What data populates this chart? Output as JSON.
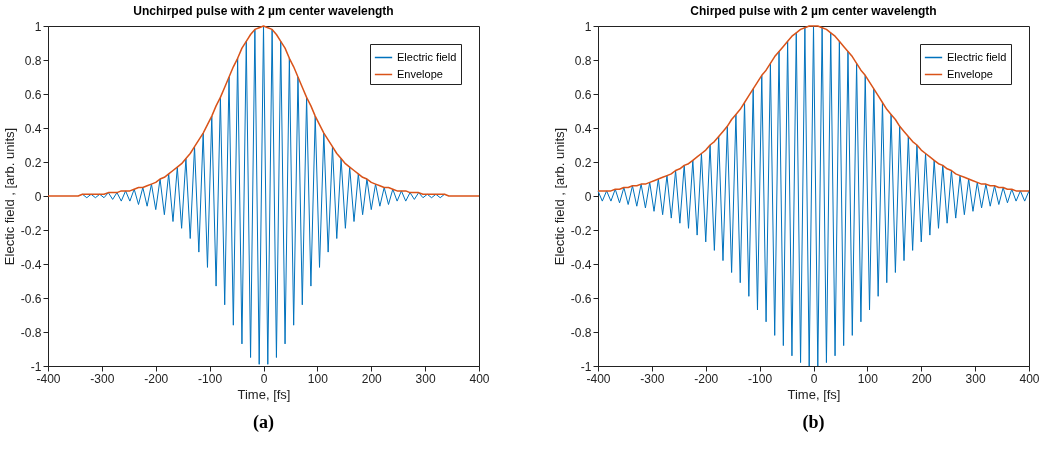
{
  "chart_data": [
    {
      "type": "line",
      "title": "Unchirped pulse with 2 µm center wavelength",
      "xlabel": "Time, [fs]",
      "ylabel": "Electic field , [arb. units]",
      "annotations": [
        "(a)"
      ],
      "x": [
        -400,
        -392,
        -384,
        -376,
        -368,
        -360,
        -352,
        -344,
        -336,
        -328,
        -320,
        -312,
        -304,
        -296,
        -288,
        -280,
        -272,
        -264,
        -256,
        -248,
        -240,
        -232,
        -224,
        -216,
        -208,
        -200,
        -192,
        -184,
        -176,
        -168,
        -160,
        -152,
        -144,
        -136,
        -128,
        -120,
        -112,
        -104,
        -96,
        -88,
        -80,
        -72,
        -64,
        -56,
        -48,
        -40,
        -32,
        -24,
        -16,
        -8,
        0,
        8,
        16,
        24,
        32,
        40,
        48,
        56,
        64,
        72,
        80,
        88,
        96,
        104,
        112,
        120,
        128,
        136,
        144,
        152,
        160,
        168,
        176,
        184,
        192,
        200,
        208,
        216,
        224,
        232,
        240,
        248,
        256,
        264,
        272,
        280,
        288,
        296,
        304,
        312,
        320,
        328,
        336,
        344,
        352,
        360,
        368,
        376,
        384,
        392,
        400
      ],
      "series": [
        {
          "name": "Electric field",
          "color": "#0072bd",
          "values": [
            null,
            null,
            null,
            null,
            null,
            null,
            null,
            null,
            0.01,
            -0.01,
            0.01,
            -0.01,
            0.01,
            -0.01,
            0.02,
            -0.02,
            0.02,
            -0.03,
            0.03,
            -0.03,
            0.04,
            -0.05,
            0.05,
            -0.06,
            0.07,
            -0.08,
            0.1,
            -0.11,
            0.13,
            -0.15,
            0.17,
            -0.19,
            0.22,
            -0.25,
            0.29,
            -0.33,
            0.37,
            -0.42,
            0.47,
            -0.53,
            0.58,
            -0.64,
            0.7,
            -0.76,
            0.81,
            -0.87,
            0.91,
            -0.95,
            0.98,
            -0.99,
            1,
            -0.99,
            0.98,
            -0.95,
            0.91,
            -0.87,
            0.81,
            -0.76,
            0.7,
            -0.64,
            0.58,
            -0.53,
            0.47,
            -0.42,
            0.37,
            -0.33,
            0.29,
            -0.25,
            0.22,
            -0.19,
            0.17,
            -0.15,
            0.13,
            -0.11,
            0.1,
            -0.08,
            0.07,
            -0.06,
            0.05,
            -0.05,
            0.04,
            -0.03,
            0.03,
            -0.03,
            0.02,
            -0.02,
            0.02,
            -0.01,
            0.01,
            -0.01,
            0.01,
            -0.01,
            0.01,
            null,
            null,
            null,
            null,
            null,
            null,
            null,
            null
          ]
        },
        {
          "name": "Envelope",
          "color": "#d95319",
          "values": [
            0,
            0,
            0,
            0,
            0,
            0,
            0,
            0,
            0.01,
            0.01,
            0.01,
            0.01,
            0.01,
            0.01,
            0.02,
            0.02,
            0.02,
            0.03,
            0.03,
            0.03,
            0.04,
            0.05,
            0.05,
            0.06,
            0.07,
            0.08,
            0.1,
            0.11,
            0.13,
            0.15,
            0.17,
            0.19,
            0.22,
            0.25,
            0.29,
            0.33,
            0.37,
            0.42,
            0.47,
            0.53,
            0.58,
            0.64,
            0.7,
            0.76,
            0.81,
            0.87,
            0.91,
            0.95,
            0.98,
            0.99,
            1,
            0.99,
            0.98,
            0.95,
            0.91,
            0.87,
            0.81,
            0.76,
            0.7,
            0.64,
            0.58,
            0.53,
            0.47,
            0.42,
            0.37,
            0.33,
            0.29,
            0.25,
            0.22,
            0.19,
            0.17,
            0.15,
            0.13,
            0.11,
            0.1,
            0.08,
            0.07,
            0.06,
            0.05,
            0.05,
            0.04,
            0.03,
            0.03,
            0.03,
            0.02,
            0.02,
            0.02,
            0.01,
            0.01,
            0.01,
            0.01,
            0.01,
            0.01,
            0,
            0,
            0,
            0,
            0,
            0,
            0,
            0
          ]
        }
      ],
      "xlim": [
        -400,
        400
      ],
      "xticks": [
        -400,
        -300,
        -200,
        -100,
        0,
        100,
        200,
        300,
        400
      ],
      "ylim": [
        -1,
        1
      ],
      "yticks": [
        -1,
        -0.8,
        -0.6,
        -0.4,
        -0.2,
        0,
        0.2,
        0.4,
        0.6,
        0.8,
        1
      ],
      "legend": "top right",
      "line_style": "solid",
      "marker": "none"
    },
    {
      "type": "line",
      "title": "Chirped pulse with 2 µm center wavelength",
      "xlabel": "Time, [fs]",
      "ylabel": "Electic field , [arb. units]",
      "annotations": [
        "(b)"
      ],
      "x": [
        -400,
        -392,
        -384,
        -376,
        -368,
        -360,
        -352,
        -344,
        -336,
        -328,
        -320,
        -312,
        -304,
        -296,
        -288,
        -280,
        -272,
        -264,
        -256,
        -248,
        -240,
        -232,
        -224,
        -216,
        -208,
        -200,
        -192,
        -184,
        -176,
        -168,
        -160,
        -152,
        -144,
        -136,
        -128,
        -120,
        -112,
        -104,
        -96,
        -88,
        -80,
        -72,
        -64,
        -56,
        -48,
        -40,
        -32,
        -24,
        -16,
        -8,
        0,
        8,
        16,
        24,
        32,
        40,
        48,
        56,
        64,
        72,
        80,
        88,
        96,
        104,
        112,
        120,
        128,
        136,
        144,
        152,
        160,
        168,
        176,
        184,
        192,
        200,
        208,
        216,
        224,
        232,
        240,
        248,
        256,
        264,
        272,
        280,
        288,
        296,
        304,
        312,
        320,
        328,
        336,
        344,
        352,
        360,
        368,
        376,
        384,
        392,
        400
      ],
      "series": [
        {
          "name": "Electric field",
          "color": "#0072bd",
          "values": [
            0.03,
            -0.03,
            0.03,
            -0.03,
            0.04,
            -0.04,
            0.05,
            -0.05,
            0.06,
            -0.06,
            0.07,
            -0.07,
            0.08,
            -0.09,
            0.1,
            -0.11,
            0.12,
            -0.13,
            0.15,
            -0.16,
            0.18,
            -0.19,
            0.21,
            -0.23,
            0.25,
            -0.27,
            0.3,
            -0.32,
            0.35,
            -0.38,
            0.41,
            -0.45,
            0.48,
            -0.51,
            0.55,
            -0.59,
            0.63,
            -0.67,
            0.71,
            -0.74,
            0.78,
            -0.82,
            0.85,
            -0.88,
            0.91,
            -0.94,
            0.96,
            -0.98,
            0.99,
            -1,
            1,
            -1,
            0.99,
            -0.98,
            0.96,
            -0.94,
            0.91,
            -0.88,
            0.85,
            -0.82,
            0.78,
            -0.74,
            0.71,
            -0.67,
            0.63,
            -0.59,
            0.55,
            -0.51,
            0.48,
            -0.45,
            0.41,
            -0.38,
            0.35,
            -0.32,
            0.3,
            -0.27,
            0.25,
            -0.23,
            0.21,
            -0.19,
            0.18,
            -0.16,
            0.15,
            -0.13,
            0.12,
            -0.11,
            0.1,
            -0.09,
            0.08,
            -0.07,
            0.07,
            -0.06,
            0.06,
            -0.05,
            0.05,
            -0.04,
            0.04,
            -0.03,
            0.03,
            -0.03,
            0.03
          ]
        },
        {
          "name": "Envelope",
          "color": "#d95319",
          "values": [
            0.03,
            0.03,
            0.03,
            0.03,
            0.04,
            0.04,
            0.05,
            0.05,
            0.06,
            0.06,
            0.07,
            0.07,
            0.08,
            0.09,
            0.1,
            0.11,
            0.12,
            0.13,
            0.15,
            0.16,
            0.18,
            0.19,
            0.21,
            0.23,
            0.25,
            0.27,
            0.3,
            0.32,
            0.35,
            0.38,
            0.41,
            0.45,
            0.48,
            0.51,
            0.55,
            0.59,
            0.63,
            0.67,
            0.71,
            0.74,
            0.78,
            0.82,
            0.85,
            0.88,
            0.91,
            0.94,
            0.96,
            0.98,
            0.99,
            1,
            1,
            1,
            0.99,
            0.98,
            0.96,
            0.94,
            0.91,
            0.88,
            0.85,
            0.82,
            0.78,
            0.74,
            0.71,
            0.67,
            0.63,
            0.59,
            0.55,
            0.51,
            0.48,
            0.45,
            0.41,
            0.38,
            0.35,
            0.32,
            0.3,
            0.27,
            0.25,
            0.23,
            0.21,
            0.19,
            0.18,
            0.16,
            0.15,
            0.13,
            0.12,
            0.11,
            0.1,
            0.09,
            0.08,
            0.07,
            0.07,
            0.06,
            0.06,
            0.05,
            0.05,
            0.04,
            0.04,
            0.03,
            0.03,
            0.03,
            0.03
          ]
        }
      ],
      "xlim": [
        -400,
        400
      ],
      "xticks": [
        -400,
        -300,
        -200,
        -100,
        0,
        100,
        200,
        300,
        400
      ],
      "ylim": [
        -1,
        1
      ],
      "yticks": [
        -1,
        -0.8,
        -0.6,
        -0.4,
        -0.2,
        0,
        0.2,
        0.4,
        0.6,
        0.8,
        1
      ],
      "legend": "top right",
      "line_style": "solid",
      "marker": "none"
    }
  ]
}
